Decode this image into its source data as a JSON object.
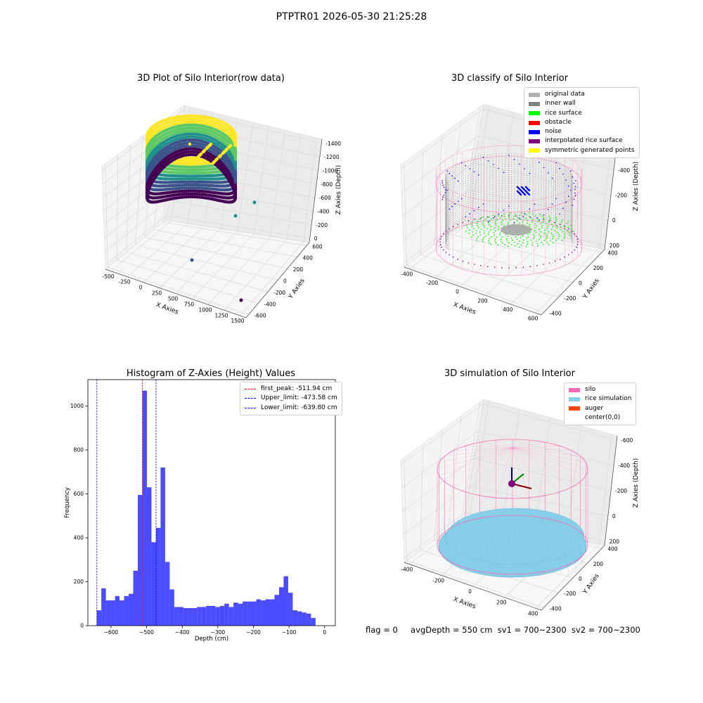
{
  "figure": {
    "suptitle": "PTPTR01 2026-05-30 21:25:28"
  },
  "status": {
    "flag": "flag = 0",
    "avg_depth": "avgDepth = 550 cm",
    "sv1": "sv1 = 700~2300",
    "sv2": "sv2 = 700~2300"
  },
  "chart_data": [
    {
      "type": "scatter",
      "title": "3D Plot of Silo Interior(row data)",
      "xlabel": "X Axies",
      "ylabel": "Y Axies",
      "zlabel": "Z Axies (Depth)",
      "xticks": [
        "-500",
        "-250",
        "0",
        "250",
        "500",
        "750",
        "1000",
        "1250",
        "1500"
      ],
      "yticks": [
        "-600",
        "-400",
        "-200",
        "0",
        "200",
        "400",
        "600"
      ],
      "zticks": [
        "0",
        "-200",
        "-400",
        "-600",
        "-800",
        "-1000",
        "-1200",
        "-1400"
      ],
      "xlim": [
        -500,
        1600
      ],
      "ylim": [
        -650,
        650
      ],
      "zlim": [
        -1450,
        100
      ],
      "colormap": [
        "#440154",
        "#3b528b",
        "#21918c",
        "#5ec962",
        "#fde725"
      ],
      "description_points": {
        "ring_radius": 450,
        "ring_center": [
          0,
          0
        ],
        "z_range": [
          -650,
          -100
        ]
      },
      "outliers": [
        {
          "x": 350,
          "y": 450,
          "z": -800
        },
        {
          "x": 600,
          "y": 250,
          "z": -1000
        },
        {
          "x": 400,
          "y": -100,
          "z": -1400
        },
        {
          "x": 1450,
          "y": -500,
          "z": -1380
        }
      ]
    },
    {
      "type": "scatter",
      "title": "3D classify of Silo Interior",
      "xlabel": "X Axies",
      "ylabel": "Y Axies",
      "zlabel": "Z Axies (Depth)",
      "xticks": [
        "-400",
        "-200",
        "0",
        "200",
        "400",
        "600"
      ],
      "yticks": [
        "-400",
        "-200",
        "0",
        "200",
        "400"
      ],
      "zticks": [
        "200",
        "0",
        "-200",
        "-400",
        "-600"
      ],
      "xlim": [
        -500,
        600
      ],
      "ylim": [
        -500,
        500
      ],
      "zlim": [
        -700,
        250
      ],
      "legend": [
        {
          "label": "original data",
          "color": "#b0b0b0"
        },
        {
          "label": "inner wall",
          "color": "#808080"
        },
        {
          "label": "rice surface",
          "color": "#00ff00"
        },
        {
          "label": "obstacle",
          "color": "#ff0000"
        },
        {
          "label": "noise",
          "color": "#0000ff"
        },
        {
          "label": "interpolated rice surface",
          "color": "#800080"
        },
        {
          "label": "symmetric generated points",
          "color": "#ffff00"
        }
      ],
      "silo_color": "#ff69b4"
    },
    {
      "type": "bar",
      "title": "Histogram of Z-Axies (Height) Values",
      "xlabel": "Depth (cm)",
      "ylabel": "Frequency",
      "xticks": [
        -600,
        -500,
        -400,
        -300,
        -200,
        -100,
        0
      ],
      "yticks": [
        0,
        200,
        400,
        600,
        800,
        1000
      ],
      "xlim": [
        -665,
        30
      ],
      "ylim": [
        0,
        1120
      ],
      "bin_start": -640,
      "bin_width": 12.8,
      "values": [
        70,
        170,
        115,
        115,
        135,
        115,
        135,
        145,
        250,
        595,
        1070,
        630,
        380,
        445,
        720,
        290,
        165,
        85,
        85,
        80,
        80,
        80,
        85,
        85,
        90,
        90,
        85,
        90,
        100,
        85,
        105,
        100,
        110,
        110,
        110,
        120,
        115,
        120,
        120,
        140,
        175,
        225,
        150,
        70,
        65,
        60,
        55,
        35
      ],
      "bar_color": "#0000ff",
      "vlines": [
        {
          "label": "first_peak: -511.94 cm",
          "value": -511.94,
          "color": "#ff0000"
        },
        {
          "label": "Upper_limit: -473.58 cm",
          "value": -473.58,
          "color": "#0000ff"
        },
        {
          "label": "Lower_limit: -639.80 cm",
          "value": -639.8,
          "color": "#0000ff"
        }
      ]
    },
    {
      "type": "scatter",
      "title": "3D simulation of Silo Interior",
      "xlabel": "X Axies",
      "ylabel": "Y Axies",
      "zlabel": "Z Axies (Depth)",
      "xticks": [
        "-400",
        "-200",
        "0",
        "200",
        "400"
      ],
      "yticks": [
        "-400",
        "-200",
        "0",
        "200",
        "400"
      ],
      "zticks": [
        "200",
        "0",
        "-200",
        "-400",
        "-600"
      ],
      "xlim": [
        -500,
        500
      ],
      "ylim": [
        -500,
        500
      ],
      "zlim": [
        -700,
        300
      ],
      "legend": [
        {
          "label": "silo",
          "color": "#ff69b4"
        },
        {
          "label": "rice simulation",
          "color": "#87ceeb"
        },
        {
          "label": "auger",
          "color": "#ff4500"
        },
        {
          "label": "center(0,0)",
          "color": "#ffffff"
        }
      ]
    }
  ]
}
